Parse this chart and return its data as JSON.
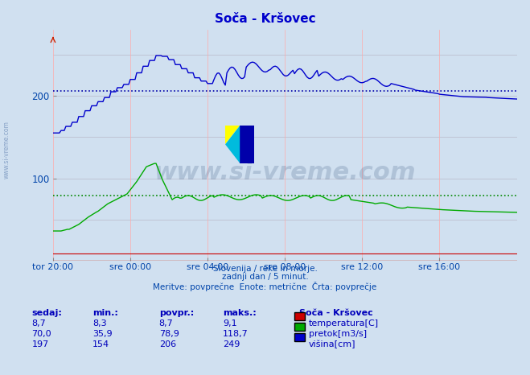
{
  "title": "Soča - Kršovec",
  "title_color": "#0000cc",
  "bg_color": "#d0e0f0",
  "plot_bg_color": "#d0e0f0",
  "grid_color_h": "#b8b8c8",
  "grid_color_v": "#ffaaaa",
  "xlabel_color": "#0044aa",
  "ylabel_color": "#0044aa",
  "x_tick_labels": [
    "tor 20:00",
    "sre 00:00",
    "sre 04:00",
    "sre 08:00",
    "sre 12:00",
    "sre 16:00"
  ],
  "x_tick_positions": [
    0,
    48,
    96,
    144,
    192,
    240
  ],
  "ylim": [
    0,
    280
  ],
  "xlim": [
    0,
    288
  ],
  "avg_visina": 206,
  "avg_pretok": 78.9,
  "line_visina_color": "#0000cc",
  "line_pretok_color": "#00aa00",
  "line_temp_color": "#cc0000",
  "avg_visina_color": "#0000aa",
  "avg_pretok_color": "#008800",
  "watermark_text": "www.si-vreme.com",
  "watermark_color": "#1a3a6a",
  "watermark_alpha": 0.18,
  "footer_line1": "Slovenija / reke in morje.",
  "footer_line2": "zadnji dan / 5 minut.",
  "footer_line3": "Meritve: povprečne  Enote: metrične  Črta: povprečje",
  "footer_color": "#0044aa",
  "table_headers": [
    "sedaj:",
    "min.:",
    "povpr.:",
    "maks.:"
  ],
  "table_header_color": "#0000bb",
  "table_rows": [
    {
      "values": [
        "8,7",
        "8,3",
        "8,7",
        "9,1"
      ],
      "label": "temperatura[C]",
      "color": "#cc0000"
    },
    {
      "values": [
        "70,0",
        "35,9",
        "78,9",
        "118,7"
      ],
      "label": "pretok[m3/s]",
      "color": "#00aa00"
    },
    {
      "values": [
        "197",
        "154",
        "206",
        "249"
      ],
      "label": "višina[cm]",
      "color": "#0000cc"
    }
  ],
  "station_label": "Soča - Kršovec",
  "station_label_color": "#0000bb"
}
